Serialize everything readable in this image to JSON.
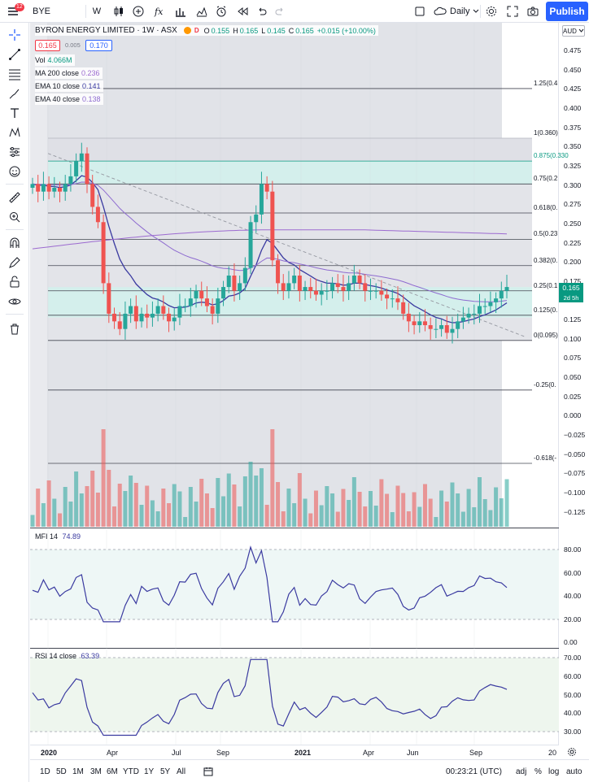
{
  "toolbar": {
    "symbol": "BYE",
    "interval": "W",
    "timeframe": "Daily",
    "publish": "Publish",
    "notif_count": "12"
  },
  "legend": {
    "name": "BYRON ENERGY LIMITED · 1W · ASX",
    "o": "0.155",
    "h": "0.165",
    "l": "0.145",
    "c": "0.165",
    "o_lbl": "O",
    "h_lbl": "H",
    "l_lbl": "L",
    "c_lbl": "C",
    "change": "+0.015 (+10.00%)",
    "bid": "0.165",
    "spread": "0.005",
    "ask": "0.170",
    "vol_label": "Vol",
    "vol_value": "4.066M",
    "ma200_label": "MA 200 close",
    "ma200_value": "0.236",
    "ema10_label": "EMA 10 close",
    "ema10_value": "0.141",
    "ema40_label": "EMA 40 close",
    "ema40_value": "0.138"
  },
  "axis": {
    "auto": "AUD",
    "price_ticks": [
      "0.475",
      "0.450",
      "0.425",
      "0.400",
      "0.375",
      "0.350",
      "0.325",
      "0.300",
      "0.275",
      "0.250",
      "0.225",
      "0.200",
      "0.175",
      "0.150",
      "0.125",
      "0.100",
      "0.075",
      "0.050",
      "0.025",
      "0.000",
      "−0.025",
      "−0.050",
      "−0.075",
      "−0.100",
      "−0.125"
    ],
    "mfi_ticks": [
      "80.00",
      "60.00",
      "40.00",
      "20.00",
      "0.00"
    ],
    "rsi_ticks": [
      "70.00",
      "60.00",
      "50.00",
      "40.00",
      "30.00"
    ],
    "last_price": "0.165",
    "countdown": "2d 5h"
  },
  "fib": {
    "levels": [
      "1.25(0.4",
      "1(0.360)",
      "0.875(0.330",
      "0.75(0.2",
      "0.618(0.",
      "0.5(0.23",
      "0.382(0.",
      "0.25(0.1",
      "0.125(0.",
      "0(0.095)",
      "-0.25(0.",
      "-0.618(-"
    ],
    "colors": {
      "accent": "#089981",
      "fill": "#b2dfdb"
    }
  },
  "mfi": {
    "label": "MFI 14",
    "value": "74.89"
  },
  "rsi": {
    "label": "RSI 14 close",
    "value": "63.39"
  },
  "time_ticks": [
    "2020",
    "Apr",
    "Jul",
    "Sep",
    "2021",
    "Apr",
    "Jun",
    "Sep",
    "20"
  ],
  "bottom": {
    "ranges": [
      "1D",
      "5D",
      "1M",
      "3M",
      "6M",
      "YTD",
      "1Y",
      "5Y",
      "All"
    ],
    "clock": "00:23:21 (UTC)",
    "adj": "adj",
    "pct": "%",
    "log": "log",
    "auto": "auto"
  },
  "colors": {
    "up": "#26a69a",
    "down": "#ef5350",
    "ema10": "#3a3aa0",
    "ema40": "#8e6bd0",
    "ma200": "#9c6ad0",
    "brand": "#2962ff"
  },
  "chart_data": {
    "type": "candlestick",
    "x_start": "2020-01",
    "weekly_closes": [
      0.3,
      0.29,
      0.3,
      0.29,
      0.295,
      0.29,
      0.3,
      0.31,
      0.33,
      0.34,
      0.3,
      0.27,
      0.25,
      0.17,
      0.13,
      0.12,
      0.11,
      0.13,
      0.14,
      0.12,
      0.13,
      0.125,
      0.13,
      0.14,
      0.13,
      0.12,
      0.125,
      0.14,
      0.14,
      0.15,
      0.16,
      0.15,
      0.14,
      0.13,
      0.15,
      0.165,
      0.18,
      0.16,
      0.17,
      0.19,
      0.25,
      0.26,
      0.3,
      0.29,
      0.2,
      0.17,
      0.16,
      0.17,
      0.18,
      0.16,
      0.165,
      0.16,
      0.155,
      0.16,
      0.16,
      0.17,
      0.165,
      0.16,
      0.17,
      0.18,
      0.17,
      0.16,
      0.16,
      0.16,
      0.155,
      0.15,
      0.15,
      0.145,
      0.13,
      0.12,
      0.115,
      0.12,
      0.115,
      0.11,
      0.11,
      0.115,
      0.105,
      0.11,
      0.12,
      0.125,
      0.13,
      0.13,
      0.14,
      0.14,
      0.145,
      0.15,
      0.16,
      0.165
    ],
    "ylim": [
      -0.14,
      0.49
    ]
  }
}
